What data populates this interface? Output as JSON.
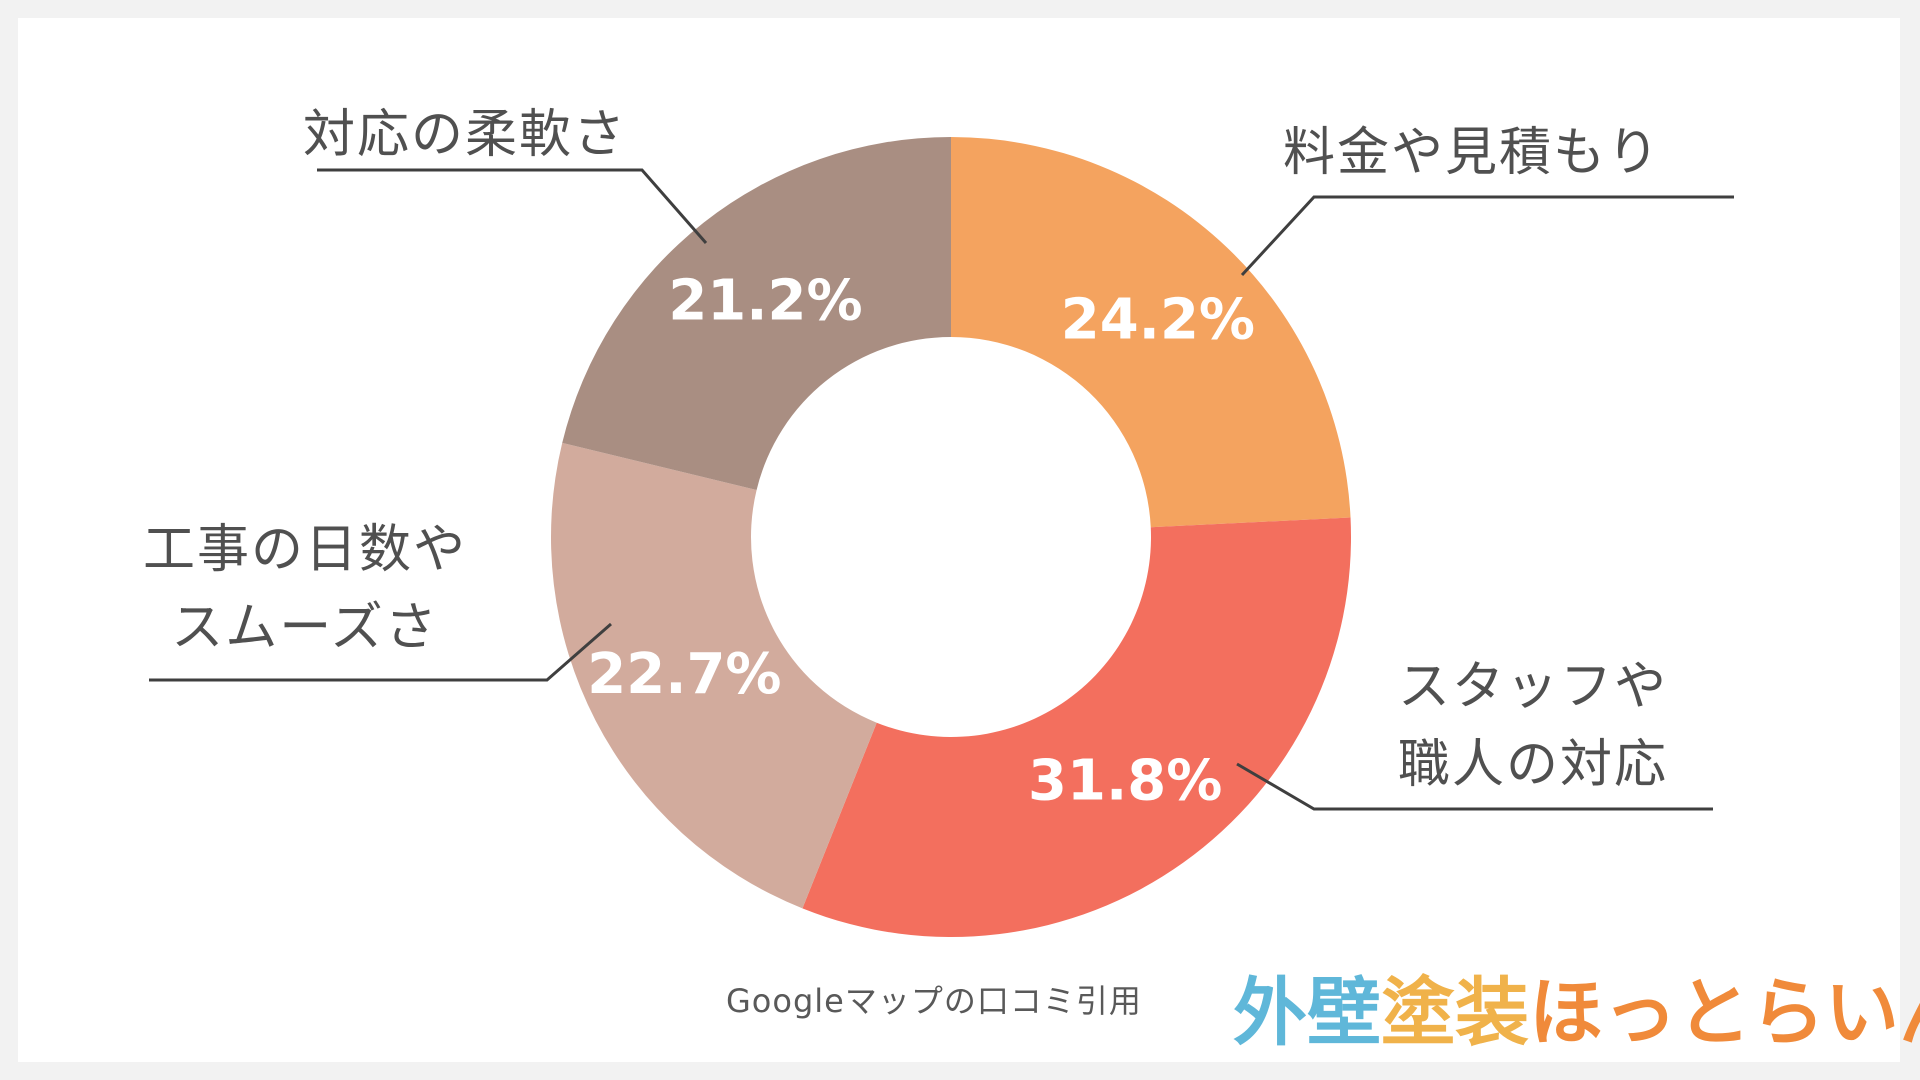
{
  "chart_data": {
    "type": "pie",
    "variant": "donut",
    "categories": [
      "料金や見積もり",
      "スタッフや職人の対応",
      "工事の日数やスムーズさ",
      "対応の柔軟さ"
    ],
    "values": [
      24.2,
      31.8,
      22.7,
      21.2
    ],
    "value_labels": [
      "24.2%",
      "31.8%",
      "22.7%",
      "21.2%"
    ],
    "colors": [
      "#F4A35F",
      "#F36F5E",
      "#D2AB9D",
      "#A98E82"
    ],
    "label_lines": [
      "料金や見積もり",
      "スタッフや\n職人の対応",
      "工事の日数や\nスムーズさ",
      "対応の柔軟さ"
    ]
  },
  "source_note": "Googleマップの口コミ引用",
  "brand": {
    "text_parts": [
      "外壁",
      "塗装",
      "ほっとらいん"
    ],
    "colors": [
      "#5FB7D9",
      "#F0B24A",
      "#F08A3A"
    ]
  }
}
